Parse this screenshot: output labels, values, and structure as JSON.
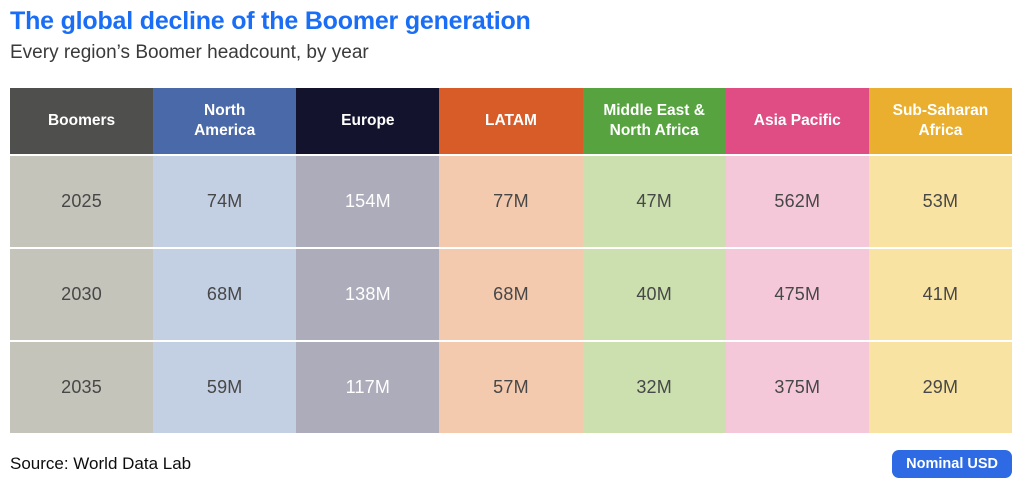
{
  "header": {
    "title": "The global decline of the Boomer generation",
    "title_color": "#1a6ef5",
    "subtitle": "Every region’s Boomer headcount, by year"
  },
  "table": {
    "columns": [
      {
        "label": "Boomers",
        "header_bg": "#4f4f4d",
        "cell_bg": "#c5c4bb",
        "cell_text": "#474747"
      },
      {
        "label": "North\nAmerica",
        "header_bg": "#4a69a8",
        "cell_bg": "#c3cfe3",
        "cell_text": "#474747"
      },
      {
        "label": "Europe",
        "header_bg": "#13132d",
        "cell_bg": "#acacbb",
        "cell_text": "#ffffff"
      },
      {
        "label": "LATAM",
        "header_bg": "#d85c28",
        "cell_bg": "#f4caae",
        "cell_text": "#474747"
      },
      {
        "label": "Middle East &\nNorth Africa",
        "header_bg": "#56a33f",
        "cell_bg": "#cbe0ae",
        "cell_text": "#474747"
      },
      {
        "label": "Asia Pacific",
        "header_bg": "#e04d85",
        "cell_bg": "#f4c8d8",
        "cell_text": "#474747"
      },
      {
        "label": "Sub-Saharan\nAfrica",
        "header_bg": "#eaaf2e",
        "cell_bg": "#f9e3a2",
        "cell_text": "#474747"
      }
    ],
    "rows": [
      {
        "cells": [
          "2025",
          "74M",
          "154M",
          "77M",
          "47M",
          "562M",
          "53M"
        ]
      },
      {
        "cells": [
          "2030",
          "68M",
          "138M",
          "68M",
          "40M",
          "475M",
          "41M"
        ]
      },
      {
        "cells": [
          "2035",
          "59M",
          "117M",
          "57M",
          "32M",
          "375M",
          "29M"
        ]
      }
    ]
  },
  "footer": {
    "source": "Source: World Data Lab",
    "badge_label": "Nominal USD",
    "badge_bg": "#2d6ae3"
  },
  "chart_data": {
    "type": "table",
    "title": "The global decline of the Boomer generation",
    "subtitle": "Every region’s Boomer headcount, by year",
    "unit": "millions of people (M)",
    "categories": [
      "2025",
      "2030",
      "2035"
    ],
    "series": [
      {
        "name": "North America",
        "values": [
          74,
          68,
          59
        ]
      },
      {
        "name": "Europe",
        "values": [
          154,
          138,
          117
        ]
      },
      {
        "name": "LATAM",
        "values": [
          77,
          68,
          57
        ]
      },
      {
        "name": "Middle East & North Africa",
        "values": [
          47,
          40,
          32
        ]
      },
      {
        "name": "Asia Pacific",
        "values": [
          562,
          475,
          375
        ]
      },
      {
        "name": "Sub-Saharan Africa",
        "values": [
          53,
          41,
          29
        ]
      }
    ],
    "source": "World Data Lab",
    "badge": "Nominal USD"
  }
}
